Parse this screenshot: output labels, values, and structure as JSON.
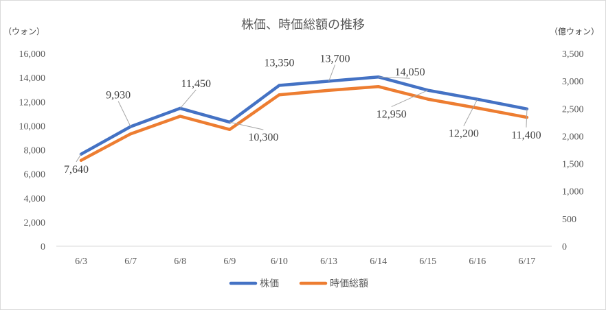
{
  "chart_data": {
    "type": "line",
    "title": "株価、時価総額の推移",
    "categories": [
      "6/3",
      "6/7",
      "6/8",
      "6/9",
      "6/10",
      "6/13",
      "6/14",
      "6/15",
      "6/16",
      "6/17"
    ],
    "y_left": {
      "unit_label": "（ウォン）",
      "ylim": [
        0,
        16000
      ],
      "ticks": [
        "0",
        "2,000",
        "4,000",
        "6,000",
        "8,000",
        "10,000",
        "12,000",
        "14,000",
        "16,000"
      ]
    },
    "y_right": {
      "unit_label": "（億ウォン）",
      "ylim": [
        0,
        3500
      ],
      "ticks": [
        "0",
        "500",
        "1,000",
        "1,500",
        "2,000",
        "2,500",
        "3,000",
        "3,500"
      ]
    },
    "series": [
      {
        "name": "株価",
        "axis": "left",
        "color": "#4472c4",
        "values": [
          7640,
          9930,
          11450,
          10300,
          13350,
          13700,
          14050,
          12950,
          12200,
          11400
        ],
        "data_labels": [
          "7,640",
          "9,930",
          "11,450",
          "10,300",
          "13,350",
          "13,700",
          "14,050",
          "12,950",
          "12,200",
          "11,400"
        ]
      },
      {
        "name": "時価総額",
        "axis": "right",
        "color": "#ed7d31",
        "values": [
          1560,
          2040,
          2360,
          2120,
          2750,
          2830,
          2900,
          2670,
          2510,
          2340
        ]
      }
    ],
    "grid": false,
    "legend_position": "bottom"
  }
}
